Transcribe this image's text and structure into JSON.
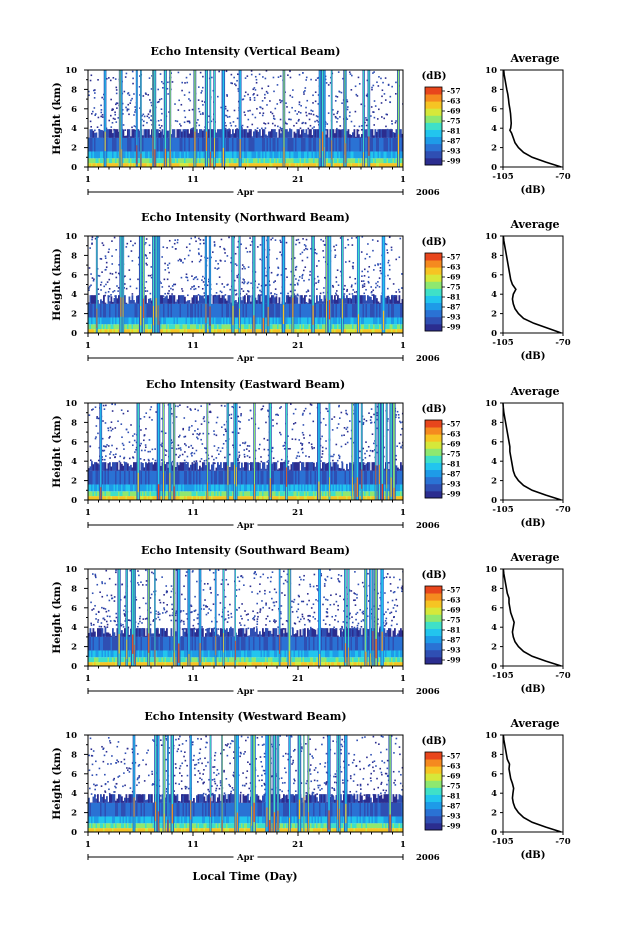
{
  "figure": {
    "xlabel": "Local Time (Day)",
    "year": "2006",
    "month": "Apr"
  },
  "colorbar": {
    "unit": "(dB)",
    "ticks": [
      "-57",
      "-63",
      "-69",
      "-75",
      "-81",
      "-87",
      "-93",
      "-99"
    ],
    "colors": [
      "#2b2d8f",
      "#2f4fb3",
      "#2a72d4",
      "#1e9be8",
      "#22c5ee",
      "#3fe0c8",
      "#8ee870",
      "#d6e83a",
      "#f6c423",
      "#f58a1f",
      "#e8461c"
    ]
  },
  "chart_data": [
    {
      "type": "heatmap",
      "title": "Echo Intensity (Vertical Beam)",
      "ylabel": "Height (km)",
      "x_ticks": [
        "1",
        "11",
        "21",
        "1"
      ],
      "x_range_days": [
        1,
        31
      ],
      "y_ticks": [
        "0",
        "2",
        "4",
        "6",
        "8",
        "10"
      ],
      "ylim": [
        0,
        10
      ],
      "color_unit": "dB",
      "color_range": [
        -99,
        -57
      ],
      "average_profile": {
        "title": "Average",
        "xlabel": "(dB)",
        "x_ticks": [
          "-105",
          "-70"
        ],
        "xlim": [
          -105,
          -70
        ],
        "y_ticks": [
          "0",
          "2",
          "4",
          "6",
          "8",
          "10"
        ],
        "ylim": [
          0,
          10
        ],
        "height_km": [
          0,
          0.5,
          1,
          1.5,
          2,
          2.5,
          3,
          3.5,
          3.8,
          4,
          4.5,
          5,
          5.5,
          6,
          6.5,
          7,
          7.5,
          8,
          8.5,
          9,
          9.5,
          10
        ],
        "intensity_db": [
          -71,
          -80,
          -88,
          -93,
          -96,
          -98,
          -99,
          -100,
          -101,
          -100.5,
          -100.2,
          -100.4,
          -100.6,
          -101,
          -101.5,
          -101.8,
          -102.2,
          -102.8,
          -103.3,
          -103.8,
          -104.3,
          -104.6
        ]
      }
    },
    {
      "type": "heatmap",
      "title": "Echo Intensity (Northward Beam)",
      "ylabel": "Height (km)",
      "x_ticks": [
        "1",
        "11",
        "21",
        "1"
      ],
      "x_range_days": [
        1,
        31
      ],
      "y_ticks": [
        "0",
        "2",
        "4",
        "6",
        "8",
        "10"
      ],
      "ylim": [
        0,
        10
      ],
      "color_unit": "dB",
      "color_range": [
        -99,
        -57
      ],
      "average_profile": {
        "title": "Average",
        "xlabel": "(dB)",
        "x_ticks": [
          "-105",
          "-70"
        ],
        "xlim": [
          -105,
          -70
        ],
        "y_ticks": [
          "0",
          "2",
          "4",
          "6",
          "8",
          "10"
        ],
        "ylim": [
          0,
          10
        ],
        "height_km": [
          0,
          0.5,
          1,
          1.5,
          2,
          2.5,
          3,
          3.5,
          4,
          4.5,
          5,
          5.5,
          6,
          6.5,
          7,
          7.5,
          8,
          8.5,
          9,
          9.5,
          10
        ],
        "intensity_db": [
          -71,
          -79,
          -87,
          -93,
          -96,
          -98,
          -99,
          -99.5,
          -99,
          -97.5,
          -99.5,
          -100.5,
          -101,
          -101.5,
          -102,
          -102.5,
          -103,
          -103.5,
          -104,
          -104.5,
          -104.8
        ]
      }
    },
    {
      "type": "heatmap",
      "title": "Echo Intensity (Eastward Beam)",
      "ylabel": "Height (km)",
      "x_ticks": [
        "1",
        "11",
        "21",
        "1"
      ],
      "x_range_days": [
        1,
        31
      ],
      "y_ticks": [
        "0",
        "2",
        "4",
        "6",
        "8",
        "10"
      ],
      "ylim": [
        0,
        10
      ],
      "color_unit": "dB",
      "color_range": [
        -99,
        -57
      ],
      "average_profile": {
        "title": "Average",
        "xlabel": "(dB)",
        "x_ticks": [
          "-105",
          "-70"
        ],
        "xlim": [
          -105,
          -70
        ],
        "y_ticks": [
          "0",
          "2",
          "4",
          "6",
          "8",
          "10"
        ],
        "ylim": [
          0,
          10
        ],
        "height_km": [
          0,
          0.5,
          1,
          1.5,
          2,
          2.5,
          3,
          3.5,
          4,
          4.5,
          5,
          5.5,
          6,
          6.5,
          7,
          7.5,
          8,
          8.5,
          9,
          9.5,
          10
        ],
        "intensity_db": [
          -71,
          -80,
          -88,
          -93,
          -96,
          -98,
          -99,
          -99.5,
          -100,
          -100.5,
          -101,
          -101,
          -101.5,
          -102,
          -102.5,
          -103,
          -103.5,
          -104,
          -104.5,
          -104.8,
          -105
        ]
      }
    },
    {
      "type": "heatmap",
      "title": "Echo Intensity (Southward Beam)",
      "ylabel": "Height (km)",
      "x_ticks": [
        "1",
        "11",
        "21",
        "1"
      ],
      "x_range_days": [
        1,
        31
      ],
      "y_ticks": [
        "0",
        "2",
        "4",
        "6",
        "8",
        "10"
      ],
      "ylim": [
        0,
        10
      ],
      "color_unit": "dB",
      "color_range": [
        -99,
        -57
      ],
      "average_profile": {
        "title": "Average",
        "xlabel": "(dB)",
        "x_ticks": [
          "-105",
          "-70"
        ],
        "xlim": [
          -105,
          -70
        ],
        "y_ticks": [
          "0",
          "2",
          "4",
          "6",
          "8",
          "10"
        ],
        "ylim": [
          0,
          10
        ],
        "height_km": [
          0,
          0.5,
          1,
          1.5,
          2,
          2.5,
          3,
          3.5,
          4,
          4.5,
          5,
          5.5,
          6,
          6.5,
          7,
          7.5,
          8,
          8.5,
          9,
          9.5,
          10
        ],
        "intensity_db": [
          -71,
          -80,
          -88,
          -93,
          -96,
          -98,
          -99,
          -99.5,
          -99,
          -98.5,
          -99.5,
          -100.5,
          -101,
          -101.5,
          -101.5,
          -102.5,
          -103,
          -103.5,
          -104,
          -104.5,
          -104.8
        ]
      }
    },
    {
      "type": "heatmap",
      "title": "Echo Intensity (Westward Beam)",
      "ylabel": "Height (km)",
      "x_ticks": [
        "1",
        "11",
        "21",
        "1"
      ],
      "x_range_days": [
        1,
        31
      ],
      "y_ticks": [
        "0",
        "2",
        "4",
        "6",
        "8",
        "10"
      ],
      "ylim": [
        0,
        10
      ],
      "color_unit": "dB",
      "color_range": [
        -99,
        -57
      ],
      "average_profile": {
        "title": "Average",
        "xlabel": "(dB)",
        "x_ticks": [
          "-105",
          "-70"
        ],
        "xlim": [
          -105,
          -70
        ],
        "y_ticks": [
          "0",
          "2",
          "4",
          "6",
          "8",
          "10"
        ],
        "ylim": [
          0,
          10
        ],
        "height_km": [
          0,
          0.5,
          1,
          1.5,
          2,
          2.5,
          3,
          3.5,
          4,
          4.5,
          5,
          5.5,
          6,
          6.5,
          7,
          7.5,
          8,
          8.5,
          9,
          9.5,
          10
        ],
        "intensity_db": [
          -71,
          -80,
          -88,
          -93,
          -96,
          -98,
          -99,
          -99.5,
          -99.2,
          -98.8,
          -99.5,
          -100.5,
          -101,
          -101.5,
          -101.2,
          -102.5,
          -103,
          -103.5,
          -104,
          -104.5,
          -104.8
        ]
      }
    }
  ]
}
